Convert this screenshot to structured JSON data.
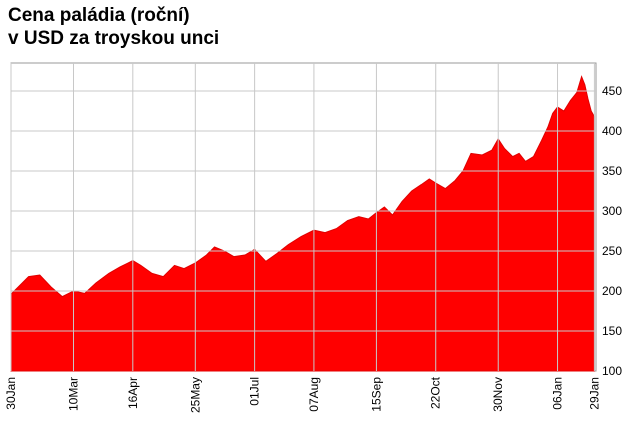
{
  "chart_data": {
    "type": "area",
    "title": "Cena paládia (roční)",
    "subtitle": "v USD za troyskou unci",
    "xlabel": "",
    "ylabel": "",
    "ylim": [
      100,
      485
    ],
    "y_ticks": [
      100,
      150,
      200,
      250,
      300,
      350,
      400,
      450
    ],
    "x_ticks": [
      "30Jan",
      "10Mar",
      "16Apr",
      "25May",
      "01Jul",
      "07Aug",
      "15Sep",
      "22Oct",
      "30Nov",
      "06Jan",
      "29Jan"
    ],
    "grid": true,
    "legend": "none",
    "series": [
      {
        "color": "#ff0000",
        "values": [
          {
            "x": "30Jan",
            "y": 196
          },
          {
            "x": "05Feb",
            "y": 208
          },
          {
            "x": "10Feb",
            "y": 218
          },
          {
            "x": "17Feb",
            "y": 220
          },
          {
            "x": "24Feb",
            "y": 205
          },
          {
            "x": "03Mar",
            "y": 193
          },
          {
            "x": "10Mar",
            "y": 200
          },
          {
            "x": "17Mar",
            "y": 197
          },
          {
            "x": "24Mar",
            "y": 210
          },
          {
            "x": "01Apr",
            "y": 222
          },
          {
            "x": "08Apr",
            "y": 230
          },
          {
            "x": "16Apr",
            "y": 238
          },
          {
            "x": "21Apr",
            "y": 232
          },
          {
            "x": "28Apr",
            "y": 222
          },
          {
            "x": "05May",
            "y": 218
          },
          {
            "x": "12May",
            "y": 232
          },
          {
            "x": "18May",
            "y": 228
          },
          {
            "x": "25May",
            "y": 235
          },
          {
            "x": "01Jun",
            "y": 245
          },
          {
            "x": "06Jun",
            "y": 255
          },
          {
            "x": "12Jun",
            "y": 250
          },
          {
            "x": "18Jun",
            "y": 243
          },
          {
            "x": "25Jun",
            "y": 245
          },
          {
            "x": "01Jul",
            "y": 252
          },
          {
            "x": "08Jul",
            "y": 237
          },
          {
            "x": "15Jul",
            "y": 247
          },
          {
            "x": "22Jul",
            "y": 258
          },
          {
            "x": "30Jul",
            "y": 268
          },
          {
            "x": "07Aug",
            "y": 276
          },
          {
            "x": "14Aug",
            "y": 273
          },
          {
            "x": "21Aug",
            "y": 278
          },
          {
            "x": "28Aug",
            "y": 288
          },
          {
            "x": "04Sep",
            "y": 293
          },
          {
            "x": "10Sep",
            "y": 290
          },
          {
            "x": "15Sep",
            "y": 298
          },
          {
            "x": "20Sep",
            "y": 305
          },
          {
            "x": "25Sep",
            "y": 295
          },
          {
            "x": "01Oct",
            "y": 312
          },
          {
            "x": "07Oct",
            "y": 325
          },
          {
            "x": "13Oct",
            "y": 333
          },
          {
            "x": "18Oct",
            "y": 340
          },
          {
            "x": "22Oct",
            "y": 335
          },
          {
            "x": "28Oct",
            "y": 328
          },
          {
            "x": "03Nov",
            "y": 338
          },
          {
            "x": "08Nov",
            "y": 350
          },
          {
            "x": "13Nov",
            "y": 372
          },
          {
            "x": "20Nov",
            "y": 370
          },
          {
            "x": "26Nov",
            "y": 376
          },
          {
            "x": "30Nov",
            "y": 390
          },
          {
            "x": "04Dec",
            "y": 378
          },
          {
            "x": "09Dec",
            "y": 368
          },
          {
            "x": "13Dec",
            "y": 372
          },
          {
            "x": "17Dec",
            "y": 362
          },
          {
            "x": "22Dec",
            "y": 368
          },
          {
            "x": "27Dec",
            "y": 388
          },
          {
            "x": "31Dec",
            "y": 405
          },
          {
            "x": "03Jan",
            "y": 422
          },
          {
            "x": "06Jan",
            "y": 430
          },
          {
            "x": "10Jan",
            "y": 425
          },
          {
            "x": "14Jan",
            "y": 438
          },
          {
            "x": "18Jan",
            "y": 448
          },
          {
            "x": "21Jan",
            "y": 468
          },
          {
            "x": "23Jan",
            "y": 458
          },
          {
            "x": "25Jan",
            "y": 440
          },
          {
            "x": "27Jan",
            "y": 425
          },
          {
            "x": "29Jan",
            "y": 418
          }
        ]
      }
    ]
  }
}
